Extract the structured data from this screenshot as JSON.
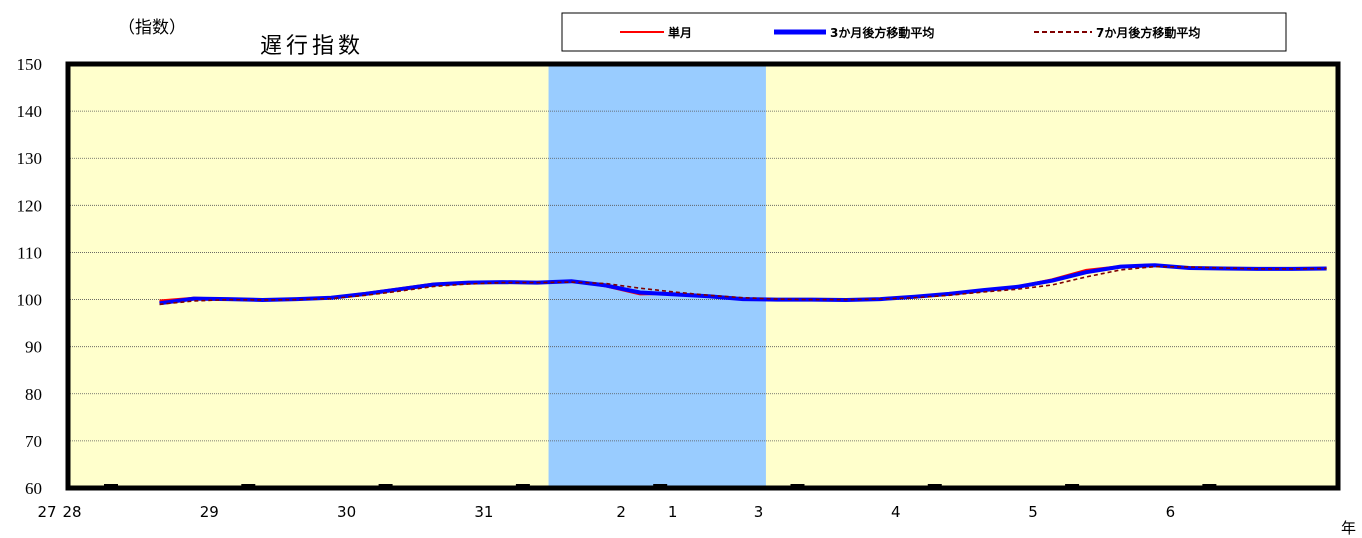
{
  "chart_data": {
    "type": "line",
    "title": "遅行指数",
    "unit_label": "（指数）",
    "x_unit_label": "年",
    "ylim": [
      60,
      150
    ],
    "y_ticks": [
      "150",
      "140",
      "130",
      "120",
      "110",
      "100",
      "90",
      "80",
      "70",
      "60"
    ],
    "x_tick_labels": [
      "27",
      "28",
      "29",
      "30",
      "31",
      "1",
      "2",
      "3",
      "4",
      "5",
      "6"
    ],
    "grid": true,
    "legend_position": "top-right",
    "colors": {
      "plot_bg": "#ffffcc",
      "shade": "#99ccff",
      "single": "#ff0000",
      "ma3": "#0000ff",
      "ma7": "#800000"
    },
    "legend": [
      "単月",
      "3か月後方移動平均",
      "7か月後方移動平均"
    ],
    "shaded_periods": [
      {
        "from": "2018-10",
        "to": "2020-05"
      }
    ],
    "x": [
      "2015-12",
      "2016-03",
      "2016-06",
      "2016-09",
      "2016-12",
      "2017-03",
      "2017-06",
      "2017-09",
      "2017-12",
      "2018-03",
      "2018-06",
      "2018-09",
      "2018-12",
      "2019-03",
      "2019-06",
      "2019-09",
      "2019-12",
      "2020-03",
      "2020-06",
      "2020-09",
      "2020-12",
      "2021-03",
      "2021-06",
      "2021-09",
      "2021-12",
      "2022-03",
      "2022-06",
      "2022-09",
      "2022-12",
      "2023-03",
      "2023-06",
      "2023-09",
      "2023-12",
      "2024-03",
      "2024-06"
    ],
    "series": [
      {
        "name": "単月",
        "line": "solid",
        "values": [
          99.8,
          100.4,
          100.2,
          100.0,
          100.2,
          100.5,
          101.4,
          102.4,
          103.4,
          103.6,
          103.8,
          103.7,
          103.9,
          102.8,
          101.1,
          101.2,
          100.6,
          100.1,
          100.0,
          100.0,
          99.9,
          100.2,
          100.6,
          101.2,
          102.1,
          102.8,
          104.3,
          106.3,
          107.1,
          107.4,
          106.6,
          106.6,
          106.4,
          106.5,
          106.7
        ]
      },
      {
        "name": "3か月後方移動平均",
        "line": "solid-thick",
        "values": [
          99.2,
          100.2,
          100.1,
          99.9,
          100.1,
          100.4,
          101.2,
          102.2,
          103.2,
          103.6,
          103.7,
          103.6,
          103.9,
          103.0,
          101.5,
          101.1,
          100.7,
          100.1,
          100.0,
          100.0,
          99.9,
          100.1,
          100.6,
          101.2,
          102.0,
          102.7,
          104.0,
          105.8,
          107.0,
          107.3,
          106.7,
          106.6,
          106.5,
          106.5,
          106.6
        ]
      },
      {
        "name": "7か月後方移動平均",
        "line": "dashed",
        "values": [
          99.0,
          99.7,
          100.0,
          99.9,
          100.0,
          100.2,
          100.9,
          101.8,
          102.8,
          103.3,
          103.6,
          103.6,
          103.7,
          103.4,
          102.4,
          101.6,
          100.9,
          100.4,
          100.1,
          100.0,
          100.0,
          100.1,
          100.4,
          100.9,
          101.6,
          102.2,
          103.1,
          104.8,
          106.3,
          107.0,
          106.9,
          106.7,
          106.5,
          106.5,
          106.6
        ]
      }
    ]
  }
}
